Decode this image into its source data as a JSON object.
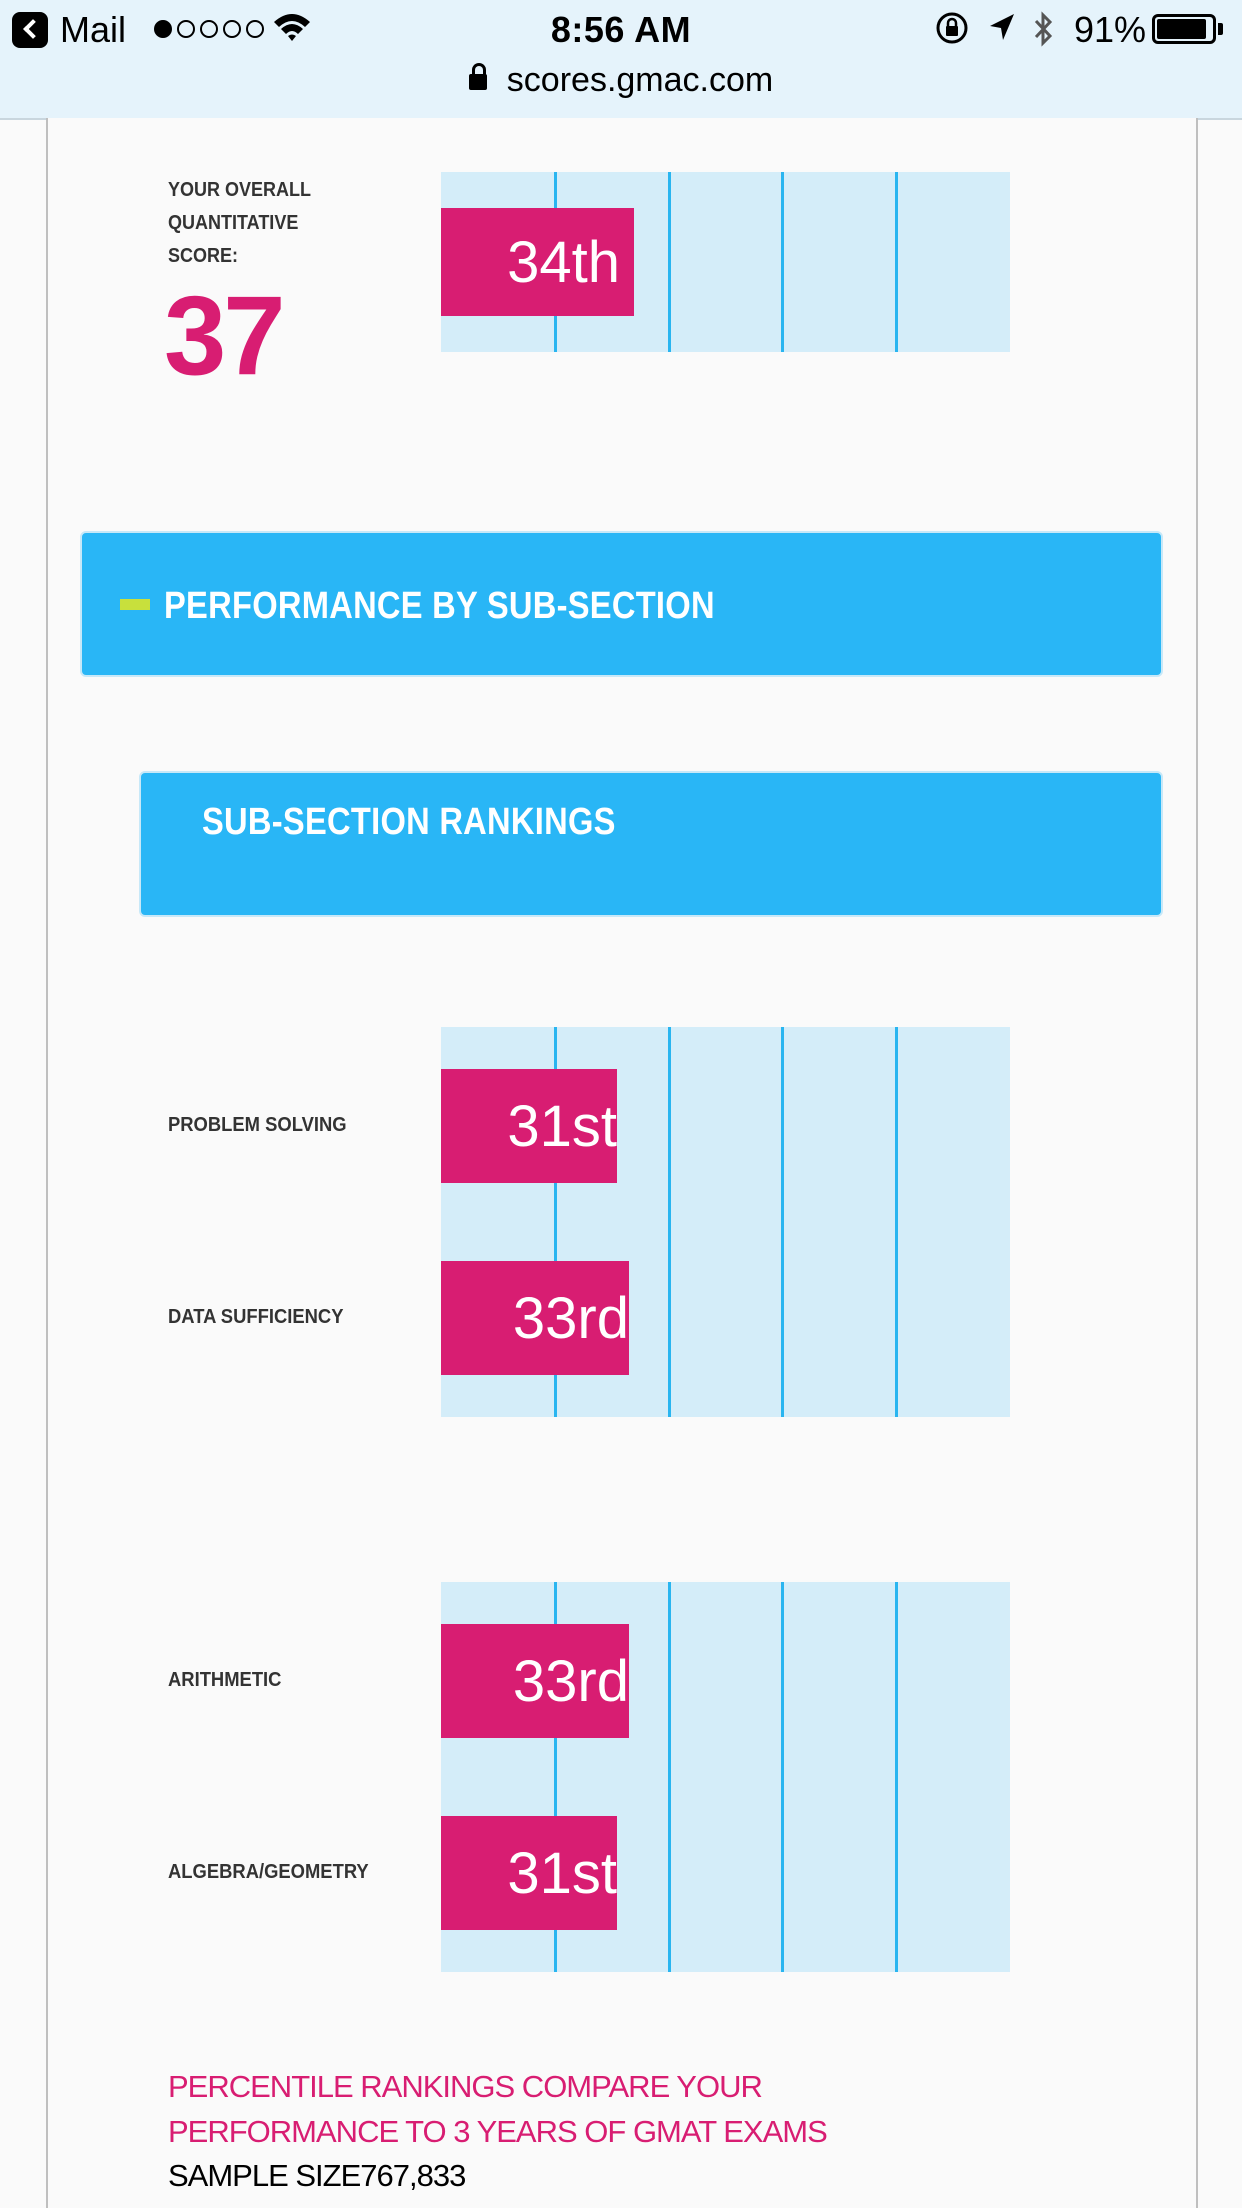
{
  "status_bar": {
    "back_app": "Mail",
    "signal_dots_filled": 1,
    "signal_dots_total": 5,
    "time": "8:56 AM",
    "url": "scores.gmac.com",
    "battery": "91%",
    "battery_level": 0.91
  },
  "overall": {
    "label_lines": [
      "YOUR OVERALL",
      "QUANTITATIVE",
      "SCORE:"
    ],
    "score": "37"
  },
  "sections": {
    "performance_title": "PERFORMANCE BY SUB-SECTION",
    "rankings_title": "SUB-SECTION RANKINGS"
  },
  "footer": {
    "note_line1": "PERCENTILE RANKINGS COMPARE YOUR",
    "note_line2": "PERFORMANCE TO 3 YEARS OF GMAT EXAMS",
    "sample_size": "SAMPLE SIZE767,833"
  },
  "colors": {
    "accent_magenta": "#d81d72",
    "banner_blue": "#29b6f6",
    "chart_bg": "#d4edf9",
    "grid_line": "#29b5f0",
    "collapse_icon": "#c8e03c"
  },
  "chart_data": [
    {
      "type": "bar",
      "orientation": "horizontal",
      "xlim": [
        0,
        100
      ],
      "grid_lines_x": [
        20,
        40,
        60,
        80
      ],
      "bars": [
        {
          "label": "34th",
          "value": 34
        }
      ]
    },
    {
      "type": "bar",
      "orientation": "horizontal",
      "xlim": [
        0,
        100
      ],
      "grid_lines_x": [
        20,
        40,
        60,
        80
      ],
      "bars": [
        {
          "category": "PROBLEM SOLVING",
          "label": "31st",
          "value": 31
        },
        {
          "category": "DATA SUFFICIENCY",
          "label": "33rd",
          "value": 33
        }
      ]
    },
    {
      "type": "bar",
      "orientation": "horizontal",
      "xlim": [
        0,
        100
      ],
      "grid_lines_x": [
        20,
        40,
        60,
        80
      ],
      "bars": [
        {
          "category": "ARITHMETIC",
          "label": "33rd",
          "value": 33
        },
        {
          "category": "ALGEBRA/GEOMETRY",
          "label": "31st",
          "value": 31
        }
      ]
    }
  ]
}
